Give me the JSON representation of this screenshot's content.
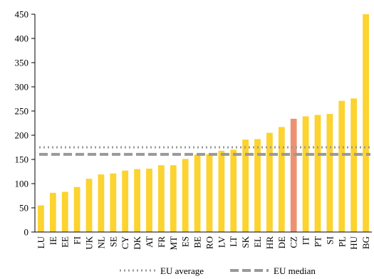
{
  "chart_data": {
    "type": "bar",
    "categories": [
      "LU",
      "IE",
      "EE",
      "FI",
      "UK",
      "NL",
      "SE",
      "CY",
      "DK",
      "AT",
      "FR",
      "MT",
      "ES",
      "BE",
      "RO",
      "LV",
      "LT",
      "SK",
      "EL",
      "HR",
      "DE",
      "CZ",
      "IT",
      "PT",
      "SI",
      "PL",
      "HU",
      "BG"
    ],
    "values": [
      55,
      81,
      83,
      93,
      110,
      119,
      121,
      127,
      130,
      131,
      138,
      138,
      151,
      160,
      161,
      168,
      170,
      191,
      192,
      205,
      217,
      234,
      239,
      242,
      244,
      271,
      276,
      450
    ],
    "highlight_category": "CZ",
    "ylim": [
      0,
      450
    ],
    "yticks": [
      0,
      50,
      100,
      150,
      200,
      250,
      300,
      350,
      400,
      450
    ],
    "grid": false,
    "reference_lines": [
      {
        "name": "EU average",
        "value": 175,
        "style": "dotted"
      },
      {
        "name": "EU median",
        "value": 160.5,
        "style": "dashed"
      }
    ],
    "legend_position": "bottom-center",
    "colors": {
      "bar": "#fcd32f",
      "highlight": "#ec9272",
      "reference": "#999999",
      "axis": "#000000"
    }
  }
}
